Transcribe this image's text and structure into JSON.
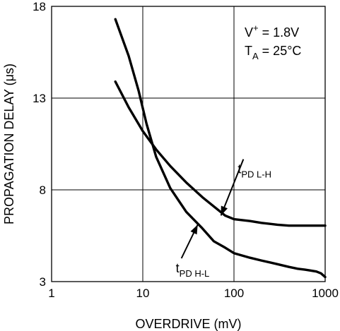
{
  "chart_data": {
    "type": "line",
    "xlabel": "OVERDRIVE (mV)",
    "ylabel": "PROPAGATION DELAY (μs)",
    "xscale": "log",
    "xlim": [
      1,
      1000
    ],
    "ylim": [
      3,
      18
    ],
    "xticks": [
      1,
      10,
      100,
      1000
    ],
    "xtick_labels": [
      "1",
      "10",
      "100",
      "1000"
    ],
    "yticks": [
      3,
      8,
      13,
      18
    ],
    "ytick_labels": [
      "3",
      "8",
      "13",
      "18"
    ],
    "grid": true,
    "conditions": {
      "supply": {
        "main": "V",
        "sup": "+",
        "value": " = 1.8V"
      },
      "temperature": {
        "main": "T",
        "sub": "A",
        "value": " = 25°C"
      }
    },
    "series": [
      {
        "name": "tPD H-L",
        "label_main": "t",
        "label_sub": "PD H-L",
        "x": [
          5,
          7,
          9,
          11,
          14,
          20,
          30,
          45,
          60,
          80,
          100,
          150,
          200,
          300,
          400,
          500,
          600,
          700,
          800,
          900,
          1000
        ],
        "y": [
          17.3,
          15.3,
          13.4,
          11.6,
          9.8,
          8.1,
          6.8,
          5.9,
          5.2,
          4.85,
          4.55,
          4.3,
          4.15,
          3.95,
          3.8,
          3.7,
          3.65,
          3.6,
          3.55,
          3.45,
          3.25
        ]
      },
      {
        "name": "tPD L-H",
        "label_main": "t",
        "label_sub": "PD L-H",
        "x": [
          5,
          7,
          10,
          14,
          20,
          30,
          45,
          60,
          80,
          100,
          150,
          200,
          300,
          400,
          500,
          700,
          1000
        ],
        "y": [
          13.9,
          12.5,
          11.2,
          10.2,
          9.3,
          8.4,
          7.6,
          7.1,
          6.6,
          6.4,
          6.3,
          6.2,
          6.1,
          6.05,
          6.05,
          6.05,
          6.05
        ]
      }
    ],
    "annotations": [
      {
        "series": "tPD H-L",
        "arrow_to": [
          40,
          6.1
        ],
        "label_anchor": [
          23,
          3.5
        ]
      },
      {
        "series": "tPD L-H",
        "arrow_to": [
          72,
          6.6
        ],
        "label_anchor": [
          110,
          8.9
        ]
      }
    ]
  }
}
